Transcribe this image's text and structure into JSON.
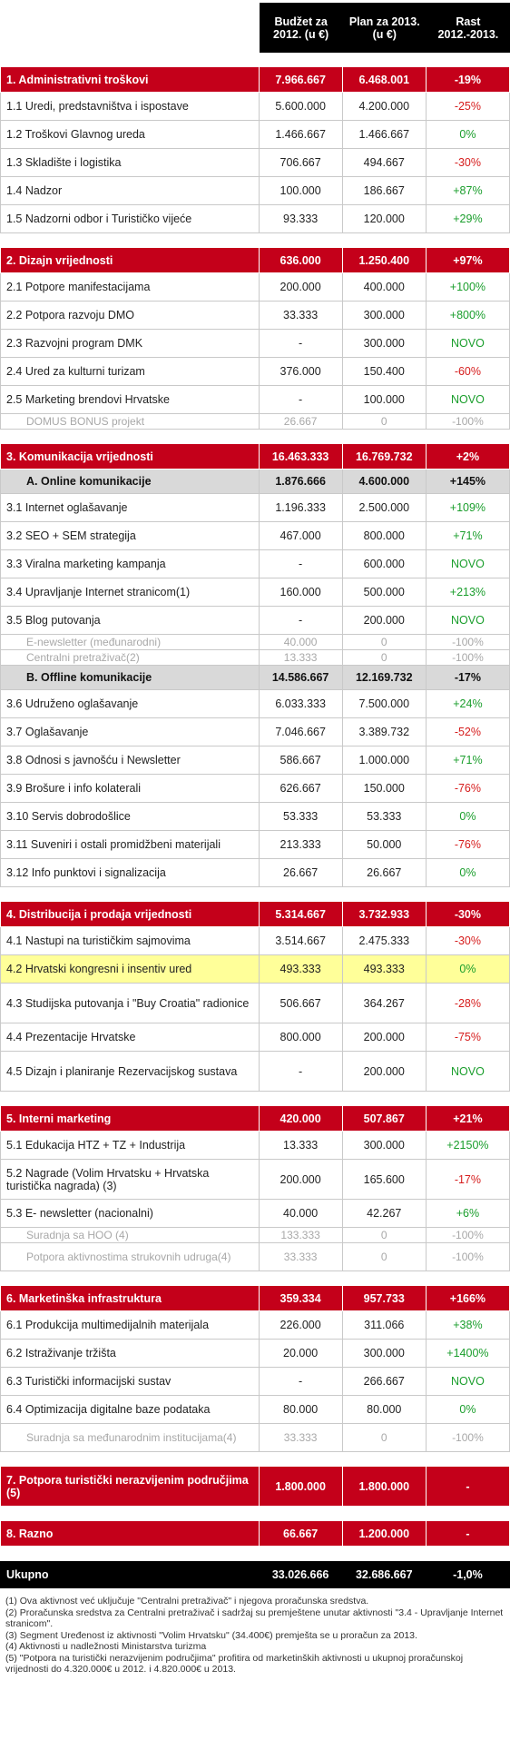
{
  "header": {
    "col1": "Budžet za 2012. (u €)",
    "col2": "Plan za 2013. (u €)",
    "col3": "Rast 2012.-2013."
  },
  "sections": [
    {
      "title": "1. Administrativni troškovi",
      "v1": "7.966.667",
      "v2": "6.468.001",
      "g": "-19%",
      "rows": [
        {
          "label": "1.1 Uredi, predstavništva i ispostave",
          "v1": "5.600.000",
          "v2": "4.200.000",
          "g": "-25%",
          "t": "neg"
        },
        {
          "label": "1.2 Troškovi Glavnog ureda",
          "v1": "1.466.667",
          "v2": "1.466.667",
          "g": "0%",
          "t": "pos"
        },
        {
          "label": "1.3 Skladište i logistika",
          "v1": "706.667",
          "v2": "494.667",
          "g": "-30%",
          "t": "neg"
        },
        {
          "label": "1.4 Nadzor",
          "v1": "100.000",
          "v2": "186.667",
          "g": "+87%",
          "t": "pos"
        },
        {
          "label": "1.5 Nadzorni odbor i Turističko vijeće",
          "v1": "93.333",
          "v2": "120.000",
          "g": "+29%",
          "t": "pos"
        }
      ]
    },
    {
      "title": "2. Dizajn vrijednosti",
      "v1": "636.000",
      "v2": "1.250.400",
      "g": "+97%",
      "rows": [
        {
          "label": "2.1  Potpore manifestacijama",
          "v1": "200.000",
          "v2": "400.000",
          "g": "+100%",
          "t": "pos"
        },
        {
          "label": "2.2  Potpora razvoju DMO",
          "v1": "33.333",
          "v2": "300.000",
          "g": "+800%",
          "t": "pos"
        },
        {
          "label": "2.3  Razvojni program DMK",
          "v1": "-",
          "v2": "300.000",
          "g": "NOVO",
          "t": "pos"
        },
        {
          "label": "2.4  Ured za kulturni turizam",
          "v1": "376.000",
          "v2": "150.400",
          "g": "-60%",
          "t": "neg"
        },
        {
          "label": "2.5  Marketing brendovi Hrvatske",
          "v1": "-",
          "v2": "100.000",
          "g": "NOVO",
          "t": "pos"
        },
        {
          "label": "DOMUS BONUS projekt",
          "v1": "26.667",
          "v2": "0",
          "g": "-100%",
          "t": "gray"
        }
      ]
    },
    {
      "title": "3. Komunikacija vrijednosti",
      "v1": "16.463.333",
      "v2": "16.769.732",
      "g": "+2%",
      "subA": {
        "label": "A.   Online komunikacije",
        "v1": "1.876.666",
        "v2": "4.600.000",
        "g": "+145%",
        "t": "pos"
      },
      "rowsA": [
        {
          "label": "3.1 Internet oglašavanje",
          "v1": "1.196.333",
          "v2": "2.500.000",
          "g": "+109%",
          "t": "pos"
        },
        {
          "label": "3.2 SEO + SEM strategija",
          "v1": "467.000",
          "v2": "800.000",
          "g": "+71%",
          "t": "pos"
        },
        {
          "label": "3.3 Viralna marketing kampanja",
          "v1": "-",
          "v2": "600.000",
          "g": "NOVO",
          "t": "pos"
        },
        {
          "label": "3.4 Upravljanje Internet stranicom(1)",
          "v1": "160.000",
          "v2": "500.000",
          "g": "+213%",
          "t": "pos"
        },
        {
          "label": "3.5 Blog putovanja",
          "v1": "-",
          "v2": "200.000",
          "g": "NOVO",
          "t": "pos"
        },
        {
          "label": "E-newsletter (međunarodni)",
          "v1": "40.000",
          "v2": "0",
          "g": "-100%",
          "t": "gray"
        },
        {
          "label": "Centralni pretraživač(2)",
          "v1": "13.333",
          "v2": "0",
          "g": "-100%",
          "t": "gray"
        }
      ],
      "subB": {
        "label": "B.   Offline komunikacije",
        "v1": "14.586.667",
        "v2": "12.169.732",
        "g": "-17%",
        "t": "neg"
      },
      "rowsB": [
        {
          "label": "3.6 Udruženo oglašavanje",
          "v1": "6.033.333",
          "v2": "7.500.000",
          "g": "+24%",
          "t": "pos"
        },
        {
          "label": "3.7 Oglašavanje",
          "v1": "7.046.667",
          "v2": "3.389.732",
          "g": "-52%",
          "t": "neg"
        },
        {
          "label": "3.8 Odnosi s javnošću i Newsletter",
          "v1": "586.667",
          "v2": "1.000.000",
          "g": "+71%",
          "t": "pos"
        },
        {
          "label": "3.9 Brošure i info kolaterali",
          "v1": "626.667",
          "v2": "150.000",
          "g": "-76%",
          "t": "neg"
        },
        {
          "label": "3.10 Servis dobrodošlice",
          "v1": "53.333",
          "v2": "53.333",
          "g": "0%",
          "t": "pos"
        },
        {
          "label": "3.11 Suveniri i ostali promidžbeni materijali",
          "v1": "213.333",
          "v2": "50.000",
          "g": "-76%",
          "t": "neg"
        },
        {
          "label": "3.12 Info punktovi i signalizacija",
          "v1": "26.667",
          "v2": "26.667",
          "g": "0%",
          "t": "pos"
        }
      ]
    },
    {
      "title": "4. Distribucija i prodaja vrijednosti",
      "v1": "5.314.667",
      "v2": "3.732.933",
      "g": "-30%",
      "rows": [
        {
          "label": "4.1 Nastupi na turističkim sajmovima",
          "v1": "3.514.667",
          "v2": "2.475.333",
          "g": "-30%",
          "t": "neg"
        },
        {
          "label": "4.2 Hrvatski kongresni i insentiv ured",
          "v1": "493.333",
          "v2": "493.333",
          "g": "0%",
          "t": "pos",
          "hl": true
        },
        {
          "label": "4.3 Studijska putovanja i \"Buy Croatia\" radionice",
          "v1": "506.667",
          "v2": "364.267",
          "g": "-28%",
          "t": "neg",
          "tall": true
        },
        {
          "label": "4.4 Prezentacije Hrvatske",
          "v1": "800.000",
          "v2": "200.000",
          "g": "-75%",
          "t": "neg"
        },
        {
          "label": "4.5 Dizajn i planiranje Rezervacijskog sustava",
          "v1": "-",
          "v2": "200.000",
          "g": "NOVO",
          "t": "pos",
          "tall": true
        }
      ]
    },
    {
      "title": "5. Interni marketing",
      "v1": "420.000",
      "v2": "507.867",
      "g": "+21%",
      "rows": [
        {
          "label": "5.1 Edukacija HTZ + TZ + Industrija",
          "v1": "13.333",
          "v2": "300.000",
          "g": "+2150%",
          "t": "pos"
        },
        {
          "label": "5.2  Nagrade (Volim Hrvatsku + Hrvatska turistička nagrada) (3)",
          "v1": "200.000",
          "v2": "165.600",
          "g": "-17%",
          "t": "neg",
          "tall": true
        },
        {
          "label": "5.3 E- newsletter (nacionalni)",
          "v1": "40.000",
          "v2": "42.267",
          "g": "+6%",
          "t": "pos"
        },
        {
          "label": "Suradnja sa HOO (4)",
          "v1": "133.333",
          "v2": "0",
          "g": "-100%",
          "t": "gray"
        },
        {
          "label": "Potpora aktivnostima strukovnih udruga(4)",
          "v1": "33.333",
          "v2": "0",
          "g": "-100%",
          "t": "gray",
          "tall": true
        }
      ]
    },
    {
      "title": "6. Marketinška infrastruktura",
      "v1": "359.334",
      "v2": "957.733",
      "g": "+166%",
      "rows": [
        {
          "label": "6.1 Produkcija multimedijalnih materijala",
          "v1": "226.000",
          "v2": "311.066",
          "g": "+38%",
          "t": "pos"
        },
        {
          "label": "6.2 Istraživanje tržišta",
          "v1": "20.000",
          "v2": "300.000",
          "g": "+1400%",
          "t": "pos"
        },
        {
          "label": "6.3 Turistički informacijski sustav",
          "v1": "-",
          "v2": "266.667",
          "g": "NOVO",
          "t": "pos"
        },
        {
          "label": "6.4 Optimizacija digitalne baze podataka",
          "v1": "80.000",
          "v2": "80.000",
          "g": "0%",
          "t": "pos"
        },
        {
          "label": "Suradnja sa međunarodnim institucijama(4)",
          "v1": "33.333",
          "v2": "0",
          "g": "-100%",
          "t": "gray",
          "tallgray": true
        }
      ]
    },
    {
      "title": "7. Potpora turistički nerazvijenim područjima (5)",
      "v1": "1.800.000",
      "v2": "1.800.000",
      "g": "-",
      "tall": true
    },
    {
      "title": "8. Razno",
      "v1": "66.667",
      "v2": "1.200.000",
      "g": "-"
    }
  ],
  "total": {
    "label": "Ukupno",
    "v1": "33.026.666",
    "v2": "32.686.667",
    "g": "-1,0%"
  },
  "footnotes": [
    "(1) Ova aktivnost već uključuje \"Centralni pretraživač\" i njegova proračunska sredstva.",
    "(2) Proračunska sredstva za Centralni pretraživač i sadržaj su premještene unutar aktivnosti \"3.4 - Upravljanje Internet stranicom\".",
    "(3) Segment Uređenost iz aktivnosti \"Volim Hrvatsku\" (34.400€) premješta se u proračun za 2013.",
    "(4) Aktivnosti u nadležnosti Ministarstva turizma",
    "(5) \"Potpora na turistički nerazvijenim područjima\" profitira od marketinških aktivnosti u ukupnoj proračunskoj vrijednosti do 4.320.000€ u 2012. i 4.820.000€ u 2013."
  ]
}
